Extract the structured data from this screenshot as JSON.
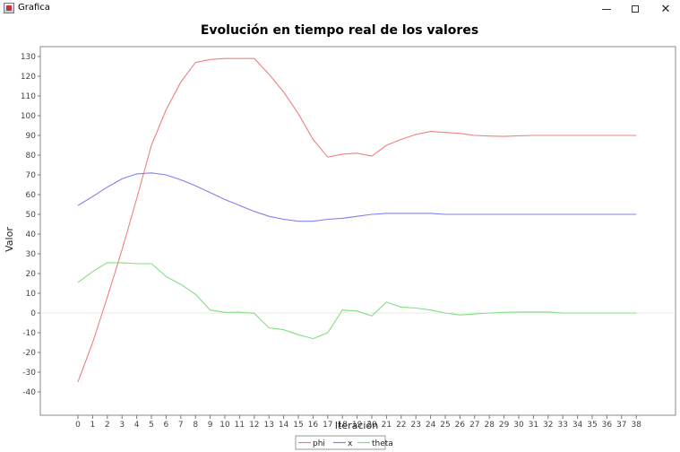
{
  "window": {
    "title": "Grafica",
    "minimize_label": "–",
    "maximize_label": "□",
    "close_label": "✕"
  },
  "chart_data": {
    "type": "line",
    "title": "Evolución en tiempo real de los valores",
    "xlabel": "Iteración",
    "ylabel": "Valor",
    "x": [
      0,
      1,
      2,
      3,
      4,
      5,
      6,
      7,
      8,
      9,
      10,
      11,
      12,
      13,
      14,
      15,
      16,
      17,
      18,
      19,
      20,
      21,
      22,
      23,
      24,
      25,
      26,
      27,
      28,
      29,
      30,
      31,
      32,
      33,
      34,
      35,
      36,
      37,
      38
    ],
    "ylim": [
      -40,
      130
    ],
    "yticks": [
      -40,
      -30,
      -20,
      -10,
      0,
      10,
      20,
      30,
      40,
      50,
      60,
      70,
      80,
      90,
      100,
      110,
      120,
      130
    ],
    "grid": false,
    "legend_position": "bottom",
    "series": [
      {
        "name": "phi",
        "color": "#f08080",
        "values": [
          -35,
          -15,
          8,
          32,
          58,
          85,
          103,
          117,
          127,
          128.5,
          129,
          129,
          129,
          121,
          112,
          101,
          88,
          79,
          80.5,
          81,
          79.5,
          85,
          88,
          90.5,
          92,
          91.5,
          91,
          90,
          89.7,
          89.5,
          89.8,
          90,
          90,
          90,
          90,
          90,
          90,
          90,
          90
        ]
      },
      {
        "name": "x",
        "color": "#8080f0",
        "values": [
          54.5,
          59,
          63.8,
          68,
          70.5,
          71,
          70,
          67.5,
          64.5,
          61,
          57.5,
          54.5,
          51.5,
          49,
          47.5,
          46.5,
          46.5,
          47.5,
          48,
          49,
          50,
          50.5,
          50.5,
          50.5,
          50.5,
          50,
          50,
          50,
          50,
          50,
          50,
          50,
          50,
          50,
          50,
          50,
          50,
          50,
          50
        ]
      },
      {
        "name": "theta",
        "color": "#80e080",
        "values": [
          15.5,
          21,
          25.5,
          25.5,
          25,
          25,
          18.5,
          14.5,
          9.5,
          1.5,
          0.3,
          0.4,
          -0.2,
          -7.5,
          -8.5,
          -11,
          -13,
          -10,
          1.5,
          1,
          -1.5,
          5.5,
          3,
          2.5,
          1.5,
          0,
          -1,
          -0.5,
          0,
          0.3,
          0.5,
          0.5,
          0.5,
          0,
          0,
          0,
          0,
          0,
          0
        ]
      }
    ]
  }
}
